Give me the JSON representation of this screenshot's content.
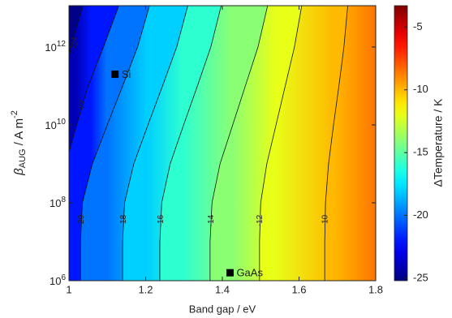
{
  "chart_data": {
    "type": "contour",
    "x_label": "Band gap / eV",
    "y_label": {
      "symbol": "β",
      "subscript": "AUG",
      "unit": " / A m",
      "superscript": "-2"
    },
    "colorbar_label": "ΔTemperature / K",
    "colormap": "jet",
    "xlim": [
      1,
      1.8
    ],
    "xticks": [
      1,
      1.2,
      1.4,
      1.6,
      1.8
    ],
    "yscale": "log",
    "ylim": [
      1000000,
      11500000000000
    ],
    "yticks": [
      {
        "value": 1000000,
        "label": "10",
        "exponent": "6"
      },
      {
        "value": 100000000,
        "label": "10",
        "exponent": "8"
      },
      {
        "value": 10000000000,
        "label": "10",
        "exponent": "10"
      },
      {
        "value": 1000000000000,
        "label": "10",
        "exponent": "12"
      }
    ],
    "clim": [
      -25.2,
      -3.3
    ],
    "cticks": [
      -25,
      -20,
      -15,
      -10,
      -5
    ],
    "contours": [
      {
        "level": -24,
        "x": [
          1.036,
          1.018,
          1.0
        ],
        "y": [
          11500000000000,
          3000000000000,
          560000000000
        ]
      },
      {
        "level": -22,
        "x": [
          1.13,
          1.09,
          1.05,
          1.02,
          1.0
        ],
        "y": [
          11500000000000,
          1000000000000,
          100000000000,
          10000000000,
          2000000000
        ]
      },
      {
        "level": -20,
        "x": [
          1.21,
          1.179,
          1.14,
          1.1,
          1.061,
          1.035,
          1.03,
          1.03
        ],
        "y": [
          11500000000000,
          1000000000000,
          100000000000,
          10000000000,
          1000000000,
          100000000,
          10000000,
          1000000
        ]
      },
      {
        "level": -18,
        "x": [
          1.31,
          1.281,
          1.244,
          1.206,
          1.169,
          1.145,
          1.14,
          1.14
        ],
        "y": [
          11500000000000,
          1000000000000,
          100000000000,
          10000000000,
          1000000000,
          100000000,
          10000000,
          1000000
        ]
      },
      {
        "level": -16,
        "x": [
          1.397,
          1.37,
          1.335,
          1.299,
          1.264,
          1.242,
          1.237,
          1.237
        ],
        "y": [
          11500000000000,
          1000000000000,
          100000000000,
          10000000000,
          1000000000,
          100000000,
          10000000,
          1000000
        ]
      },
      {
        "level": -14,
        "x": [
          1.518,
          1.493,
          1.46,
          1.427,
          1.394,
          1.373,
          1.368,
          1.368
        ],
        "y": [
          11500000000000,
          1000000000000,
          100000000000,
          10000000000,
          1000000000,
          100000000,
          10000000,
          1000000
        ]
      },
      {
        "level": -12,
        "x": [
          1.607,
          1.588,
          1.564,
          1.54,
          1.516,
          1.5,
          1.497,
          1.497
        ],
        "y": [
          11500000000000,
          1000000000000,
          100000000000,
          10000000000,
          1000000000,
          100000000,
          10000000,
          1000000
        ]
      },
      {
        "level": -10,
        "x": [
          1.727,
          1.717,
          1.704,
          1.69,
          1.677,
          1.669,
          1.667,
          1.667
        ],
        "y": [
          11500000000000,
          1000000000000,
          100000000000,
          10000000000,
          1000000000,
          100000000,
          10000000,
          1000000
        ]
      }
    ],
    "points": [
      {
        "name": "Si",
        "x": 1.12,
        "y": 200000000000
      },
      {
        "name": "GaAs",
        "x": 1.42,
        "y": 1600000
      }
    ]
  }
}
